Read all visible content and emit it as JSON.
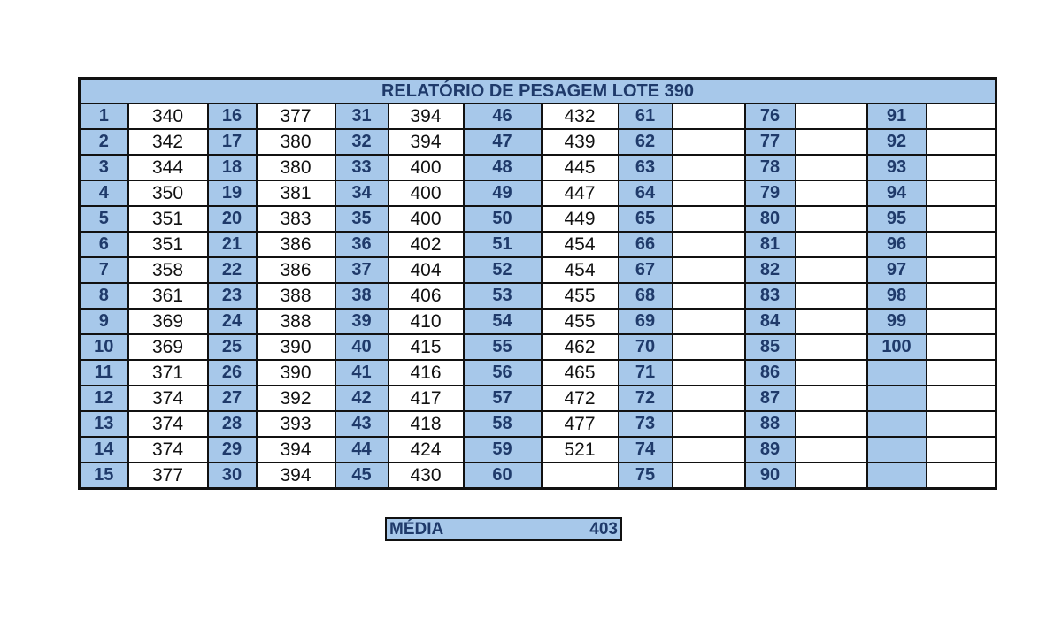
{
  "title": "RELATÓRIO DE PESAGEM LOTE  390",
  "groups": [
    {
      "numbers": [
        "1",
        "2",
        "3",
        "4",
        "5",
        "6",
        "7",
        "8",
        "9",
        "10",
        "11",
        "12",
        "13",
        "14",
        "15"
      ],
      "values": [
        "340",
        "342",
        "344",
        "350",
        "351",
        "351",
        "358",
        "361",
        "369",
        "369",
        "371",
        "374",
        "374",
        "374",
        "377"
      ]
    },
    {
      "numbers": [
        "16",
        "17",
        "18",
        "19",
        "20",
        "21",
        "22",
        "23",
        "24",
        "25",
        "26",
        "27",
        "28",
        "29",
        "30"
      ],
      "values": [
        "377",
        "380",
        "380",
        "381",
        "383",
        "386",
        "386",
        "388",
        "388",
        "390",
        "390",
        "392",
        "393",
        "394",
        "394"
      ]
    },
    {
      "numbers": [
        "31",
        "32",
        "33",
        "34",
        "35",
        "36",
        "37",
        "38",
        "39",
        "40",
        "41",
        "42",
        "43",
        "44",
        "45"
      ],
      "values": [
        "394",
        "394",
        "400",
        "400",
        "400",
        "402",
        "404",
        "406",
        "410",
        "415",
        "416",
        "417",
        "418",
        "424",
        "430"
      ]
    },
    {
      "numbers": [
        "46",
        "47",
        "48",
        "49",
        "50",
        "51",
        "52",
        "53",
        "54",
        "55",
        "56",
        "57",
        "58",
        "59",
        "60"
      ],
      "values": [
        "432",
        "439",
        "445",
        "447",
        "449",
        "454",
        "454",
        "455",
        "455",
        "462",
        "465",
        "472",
        "477",
        "521",
        ""
      ]
    },
    {
      "numbers": [
        "61",
        "62",
        "63",
        "64",
        "65",
        "66",
        "67",
        "68",
        "69",
        "70",
        "71",
        "72",
        "73",
        "74",
        "75"
      ],
      "values": [
        "",
        "",
        "",
        "",
        "",
        "",
        "",
        "",
        "",
        "",
        "",
        "",
        "",
        "",
        ""
      ]
    },
    {
      "numbers": [
        "76",
        "77",
        "78",
        "79",
        "80",
        "81",
        "82",
        "83",
        "84",
        "85",
        "86",
        "87",
        "88",
        "89",
        "90"
      ],
      "values": [
        "",
        "",
        "",
        "",
        "",
        "",
        "",
        "",
        "",
        "",
        "",
        "",
        "",
        "",
        ""
      ]
    },
    {
      "numbers": [
        "91",
        "92",
        "93",
        "94",
        "95",
        "96",
        "97",
        "98",
        "99",
        "100",
        "",
        "",
        "",
        "",
        ""
      ],
      "values": [
        "",
        "",
        "",
        "",
        "",
        "",
        "",
        "",
        "",
        "",
        "",
        "",
        "",
        "",
        ""
      ]
    }
  ],
  "summary": {
    "label": "MÉDIA",
    "value": "403"
  },
  "colors": {
    "header_fill": "#a7c8ea",
    "header_text": "#1f3a6a",
    "border": "#111111"
  }
}
